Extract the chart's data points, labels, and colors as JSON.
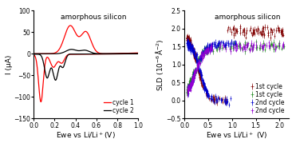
{
  "title1": "amorphous silicon",
  "title2": "amorphous silicon",
  "xlabel1": "Ewe vs Li/Li$^+$(V)",
  "xlabel2": "Ewe vs Li/Li$^+$ (V)",
  "ylabel1": "I (μA)",
  "ylabel2": "SLD (10$^{-6}$Å$^{-2}$)",
  "xlim1": [
    0.0,
    1.0
  ],
  "ylim1": [
    -150,
    100
  ],
  "xlim2": [
    0.0,
    2.2
  ],
  "ylim2": [
    -0.5,
    2.5
  ],
  "xticks1": [
    0.0,
    0.2,
    0.4,
    0.6,
    0.8,
    1.0
  ],
  "yticks1": [
    -150,
    -100,
    -50,
    0,
    50,
    100
  ],
  "xticks2": [
    0.0,
    0.5,
    1.0,
    1.5,
    2.0
  ],
  "yticks2": [
    -0.5,
    0.0,
    0.5,
    1.0,
    1.5,
    2.0,
    2.5
  ],
  "cycle1_color": "#FF0000",
  "cycle2_color": "#000000",
  "legend1": [
    "cycle 1",
    "cycle 2"
  ],
  "sld_labels": [
    "1st cycle",
    "1st cycle",
    "2nd cycle",
    "2nd cycle"
  ],
  "sld_colors": [
    "#800000",
    "#228B22",
    "#0000CD",
    "#9400D3"
  ],
  "background": "#FFFFFF",
  "fontsize": 7
}
